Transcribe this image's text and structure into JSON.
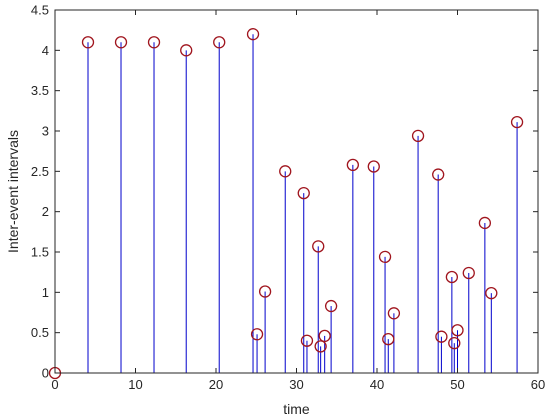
{
  "chart_data": {
    "type": "stem",
    "xlabel": "time",
    "ylabel": "Inter-event intervals",
    "xlim": [
      0,
      60
    ],
    "ylim": [
      0,
      4.5
    ],
    "xticks": [
      0,
      10,
      20,
      30,
      40,
      50,
      60
    ],
    "yticks": [
      0,
      0.5,
      1,
      1.5,
      2,
      2.5,
      3,
      3.5,
      4,
      4.5
    ],
    "xtick_labels": [
      "0",
      "10",
      "20",
      "30",
      "40",
      "50",
      "60"
    ],
    "ytick_labels": [
      "0",
      "0.5",
      "1",
      "1.5",
      "2",
      "2.5",
      "3",
      "3.5",
      "4",
      "4.5"
    ],
    "grid": false,
    "box": true,
    "colors": {
      "stem": "#0000cc",
      "marker": "#a0151e",
      "axis": "#262626"
    },
    "points": [
      {
        "x": 0.0,
        "y": 0.0
      },
      {
        "x": 4.1,
        "y": 4.1
      },
      {
        "x": 8.2,
        "y": 4.1
      },
      {
        "x": 12.3,
        "y": 4.1
      },
      {
        "x": 16.3,
        "y": 4.0
      },
      {
        "x": 20.4,
        "y": 4.1
      },
      {
        "x": 24.6,
        "y": 4.2
      },
      {
        "x": 25.1,
        "y": 0.48
      },
      {
        "x": 26.1,
        "y": 1.01
      },
      {
        "x": 28.6,
        "y": 2.5
      },
      {
        "x": 30.9,
        "y": 2.23
      },
      {
        "x": 31.3,
        "y": 0.4
      },
      {
        "x": 32.7,
        "y": 1.57
      },
      {
        "x": 33.0,
        "y": 0.33
      },
      {
        "x": 33.5,
        "y": 0.46
      },
      {
        "x": 34.3,
        "y": 0.83
      },
      {
        "x": 37.0,
        "y": 2.58
      },
      {
        "x": 39.6,
        "y": 2.56
      },
      {
        "x": 41.0,
        "y": 1.44
      },
      {
        "x": 41.4,
        "y": 0.42
      },
      {
        "x": 42.1,
        "y": 0.74
      },
      {
        "x": 45.1,
        "y": 2.94
      },
      {
        "x": 47.6,
        "y": 2.46
      },
      {
        "x": 48.0,
        "y": 0.45
      },
      {
        "x": 49.3,
        "y": 1.19
      },
      {
        "x": 49.6,
        "y": 0.37
      },
      {
        "x": 50.0,
        "y": 0.53
      },
      {
        "x": 51.4,
        "y": 1.24
      },
      {
        "x": 53.4,
        "y": 1.86
      },
      {
        "x": 54.2,
        "y": 0.99
      },
      {
        "x": 57.4,
        "y": 3.11
      }
    ]
  }
}
